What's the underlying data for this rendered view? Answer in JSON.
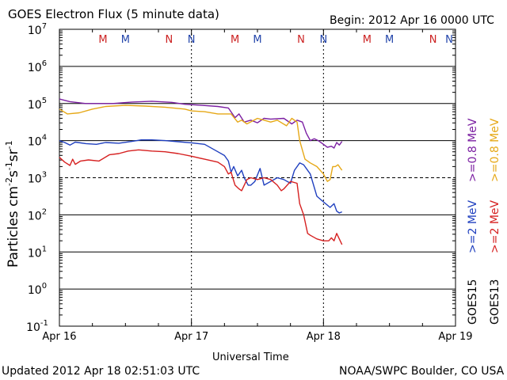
{
  "chart_data": {
    "type": "line",
    "title": "GOES Electron Flux (5 minute data)",
    "begin_label": "Begin: 2012 Apr 16 0000 UTC",
    "xlabel": "Universal Time",
    "ylabel_parts": [
      "Particles cm",
      "-2",
      "s",
      "-1",
      "sr",
      "-1"
    ],
    "updated": "Updated 2012 Apr 18 02:51:03 UTC",
    "credit": "NOAA/SWPC Boulder, CO USA",
    "x_unit": "days since 2012 Apr 16 0000 UTC",
    "xlim": [
      0,
      3
    ],
    "x_ticks": [
      {
        "value": 0,
        "label": "Apr 16"
      },
      {
        "value": 1,
        "label": "Apr 17"
      },
      {
        "value": 2,
        "label": "Apr 18"
      },
      {
        "value": 3,
        "label": "Apr 19"
      }
    ],
    "y_scale": "log",
    "ylim_exponent": [
      -1,
      7
    ],
    "y_ticks": [
      {
        "exp": 7,
        "base": "10",
        "sup": "7"
      },
      {
        "exp": 6,
        "base": "10",
        "sup": "6"
      },
      {
        "exp": 5,
        "base": "10",
        "sup": "5"
      },
      {
        "exp": 4,
        "base": "10",
        "sup": "4"
      },
      {
        "exp": 3,
        "base": "10",
        "sup": "3"
      },
      {
        "exp": 2,
        "base": "10",
        "sup": "2"
      },
      {
        "exp": 1,
        "base": "10",
        "sup": "1"
      },
      {
        "exp": 0,
        "base": "10",
        "sup": "0"
      },
      {
        "exp": -1,
        "base": "10",
        "sup": "-1"
      }
    ],
    "threshold_exponent": 3,
    "markers": [
      {
        "x": 0.33,
        "label": "M",
        "color": "#cc2222"
      },
      {
        "x": 0.5,
        "label": "M",
        "color": "#2244aa"
      },
      {
        "x": 0.83,
        "label": "N",
        "color": "#cc2222"
      },
      {
        "x": 1.0,
        "label": "N",
        "color": "#2244aa"
      },
      {
        "x": 1.33,
        "label": "M",
        "color": "#cc2222"
      },
      {
        "x": 1.5,
        "label": "M",
        "color": "#2244aa"
      },
      {
        "x": 1.83,
        "label": "N",
        "color": "#cc2222"
      },
      {
        "x": 2.0,
        "label": "N",
        "color": "#2244aa"
      },
      {
        "x": 2.33,
        "label": "M",
        "color": "#cc2222"
      },
      {
        "x": 2.5,
        "label": "M",
        "color": "#2244aa"
      },
      {
        "x": 2.83,
        "label": "N",
        "color": "#cc2222"
      },
      {
        "x": 3.0,
        "label": "N",
        "color": "#2244aa"
      }
    ],
    "legend": [
      {
        "sat": "GOES15",
        "label": ">=0.8 MeV",
        "color": "#7b1fa2"
      },
      {
        "sat": "GOES13",
        "label": ">=0.8 MeV",
        "color": "#e6a817"
      },
      {
        "sat": "GOES15",
        "label": ">=2 MeV",
        "color": "#1f3fbf"
      },
      {
        "sat": "GOES13",
        "label": ">=2 MeV",
        "color": "#d62020"
      }
    ],
    "series": [
      {
        "name": "GOES15 >=0.8 MeV",
        "color": "#7b1fa2",
        "points": [
          [
            0,
            5.12
          ],
          [
            0.08,
            5.05
          ],
          [
            0.2,
            5.0
          ],
          [
            0.4,
            5.0
          ],
          [
            0.55,
            5.04
          ],
          [
            0.7,
            5.06
          ],
          [
            0.85,
            5.03
          ],
          [
            0.95,
            4.98
          ],
          [
            1.08,
            4.95
          ],
          [
            1.2,
            4.92
          ],
          [
            1.28,
            4.88
          ],
          [
            1.33,
            4.62
          ],
          [
            1.36,
            4.72
          ],
          [
            1.4,
            4.5
          ],
          [
            1.45,
            4.55
          ],
          [
            1.5,
            4.48
          ],
          [
            1.55,
            4.6
          ],
          [
            1.6,
            4.58
          ],
          [
            1.7,
            4.6
          ],
          [
            1.76,
            4.45
          ],
          [
            1.8,
            4.55
          ],
          [
            1.84,
            4.5
          ],
          [
            1.87,
            4.2
          ],
          [
            1.9,
            4.0
          ],
          [
            1.93,
            4.05
          ],
          [
            1.96,
            4.0
          ],
          [
            2.0,
            3.9
          ],
          [
            2.03,
            3.82
          ],
          [
            2.06,
            3.85
          ],
          [
            2.08,
            3.8
          ],
          [
            2.1,
            3.95
          ],
          [
            2.12,
            3.88
          ],
          [
            2.14,
            3.98
          ]
        ]
      },
      {
        "name": "GOES13 >=0.8 MeV",
        "color": "#e6a817",
        "points": [
          [
            0,
            4.85
          ],
          [
            0.06,
            4.72
          ],
          [
            0.15,
            4.75
          ],
          [
            0.25,
            4.85
          ],
          [
            0.35,
            4.92
          ],
          [
            0.5,
            4.95
          ],
          [
            0.65,
            4.93
          ],
          [
            0.8,
            4.9
          ],
          [
            0.95,
            4.85
          ],
          [
            1.0,
            4.8
          ],
          [
            1.1,
            4.78
          ],
          [
            1.2,
            4.72
          ],
          [
            1.3,
            4.72
          ],
          [
            1.35,
            4.5
          ],
          [
            1.38,
            4.55
          ],
          [
            1.42,
            4.45
          ],
          [
            1.5,
            4.6
          ],
          [
            1.55,
            4.55
          ],
          [
            1.6,
            4.5
          ],
          [
            1.65,
            4.55
          ],
          [
            1.72,
            4.4
          ],
          [
            1.76,
            4.6
          ],
          [
            1.8,
            4.5
          ],
          [
            1.82,
            4.0
          ],
          [
            1.86,
            3.5
          ],
          [
            1.9,
            3.4
          ],
          [
            1.95,
            3.3
          ],
          [
            2.0,
            3.1
          ],
          [
            2.03,
            2.9
          ],
          [
            2.05,
            2.95
          ],
          [
            2.07,
            3.3
          ],
          [
            2.09,
            3.3
          ],
          [
            2.11,
            3.35
          ],
          [
            2.13,
            3.25
          ],
          [
            2.14,
            3.2
          ]
        ]
      },
      {
        "name": "GOES15 >=2 MeV",
        "color": "#1f3fbf",
        "points": [
          [
            0,
            4.0
          ],
          [
            0.04,
            3.95
          ],
          [
            0.08,
            3.88
          ],
          [
            0.12,
            3.96
          ],
          [
            0.2,
            3.92
          ],
          [
            0.28,
            3.9
          ],
          [
            0.35,
            3.95
          ],
          [
            0.45,
            3.93
          ],
          [
            0.55,
            3.98
          ],
          [
            0.62,
            4.02
          ],
          [
            0.7,
            4.02
          ],
          [
            0.8,
            4.0
          ],
          [
            0.9,
            3.97
          ],
          [
            1.0,
            3.94
          ],
          [
            1.1,
            3.9
          ],
          [
            1.2,
            3.7
          ],
          [
            1.25,
            3.6
          ],
          [
            1.28,
            3.45
          ],
          [
            1.3,
            3.15
          ],
          [
            1.32,
            3.3
          ],
          [
            1.35,
            3.05
          ],
          [
            1.38,
            3.2
          ],
          [
            1.4,
            3.0
          ],
          [
            1.43,
            2.8
          ],
          [
            1.45,
            2.8
          ],
          [
            1.48,
            2.9
          ],
          [
            1.52,
            3.25
          ],
          [
            1.55,
            2.8
          ],
          [
            1.6,
            2.9
          ],
          [
            1.65,
            3.0
          ],
          [
            1.7,
            2.95
          ],
          [
            1.75,
            2.85
          ],
          [
            1.78,
            3.2
          ],
          [
            1.82,
            3.4
          ],
          [
            1.85,
            3.35
          ],
          [
            1.9,
            3.1
          ],
          [
            1.95,
            2.5
          ],
          [
            2.0,
            2.35
          ],
          [
            2.05,
            2.2
          ],
          [
            2.08,
            2.3
          ],
          [
            2.1,
            2.1
          ],
          [
            2.12,
            2.05
          ],
          [
            2.14,
            2.08
          ]
        ]
      },
      {
        "name": "GOES13 >=2 MeV",
        "color": "#d62020",
        "points": [
          [
            0,
            3.55
          ],
          [
            0.04,
            3.42
          ],
          [
            0.08,
            3.33
          ],
          [
            0.1,
            3.5
          ],
          [
            0.12,
            3.36
          ],
          [
            0.16,
            3.45
          ],
          [
            0.22,
            3.48
          ],
          [
            0.3,
            3.45
          ],
          [
            0.38,
            3.62
          ],
          [
            0.45,
            3.65
          ],
          [
            0.52,
            3.72
          ],
          [
            0.6,
            3.75
          ],
          [
            0.7,
            3.72
          ],
          [
            0.8,
            3.7
          ],
          [
            0.9,
            3.65
          ],
          [
            1.0,
            3.58
          ],
          [
            1.1,
            3.5
          ],
          [
            1.2,
            3.42
          ],
          [
            1.25,
            3.3
          ],
          [
            1.28,
            3.1
          ],
          [
            1.3,
            3.15
          ],
          [
            1.33,
            2.8
          ],
          [
            1.36,
            2.7
          ],
          [
            1.38,
            2.65
          ],
          [
            1.42,
            2.95
          ],
          [
            1.45,
            3.0
          ],
          [
            1.5,
            2.95
          ],
          [
            1.55,
            3.0
          ],
          [
            1.6,
            2.95
          ],
          [
            1.65,
            2.8
          ],
          [
            1.68,
            2.65
          ],
          [
            1.7,
            2.7
          ],
          [
            1.75,
            2.9
          ],
          [
            1.8,
            2.85
          ],
          [
            1.82,
            2.3
          ],
          [
            1.85,
            2.0
          ],
          [
            1.88,
            1.5
          ],
          [
            1.9,
            1.45
          ],
          [
            1.95,
            1.35
          ],
          [
            2.0,
            1.3
          ],
          [
            2.04,
            1.3
          ],
          [
            2.06,
            1.38
          ],
          [
            2.08,
            1.3
          ],
          [
            2.1,
            1.5
          ],
          [
            2.12,
            1.35
          ],
          [
            2.14,
            1.2
          ]
        ]
      }
    ]
  }
}
